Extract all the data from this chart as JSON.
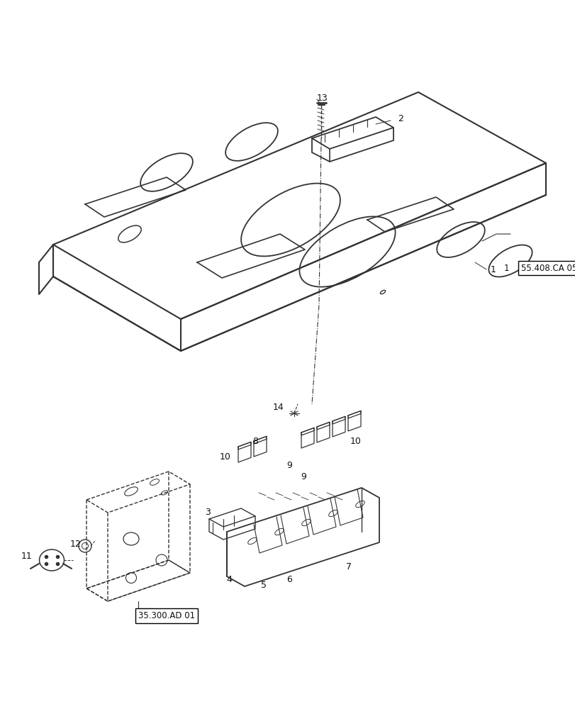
{
  "bg_color": "#ffffff",
  "line_color": "#333333",
  "label_color": "#111111",
  "fig_width": 8.12,
  "fig_height": 10.0,
  "dpi": 100
}
